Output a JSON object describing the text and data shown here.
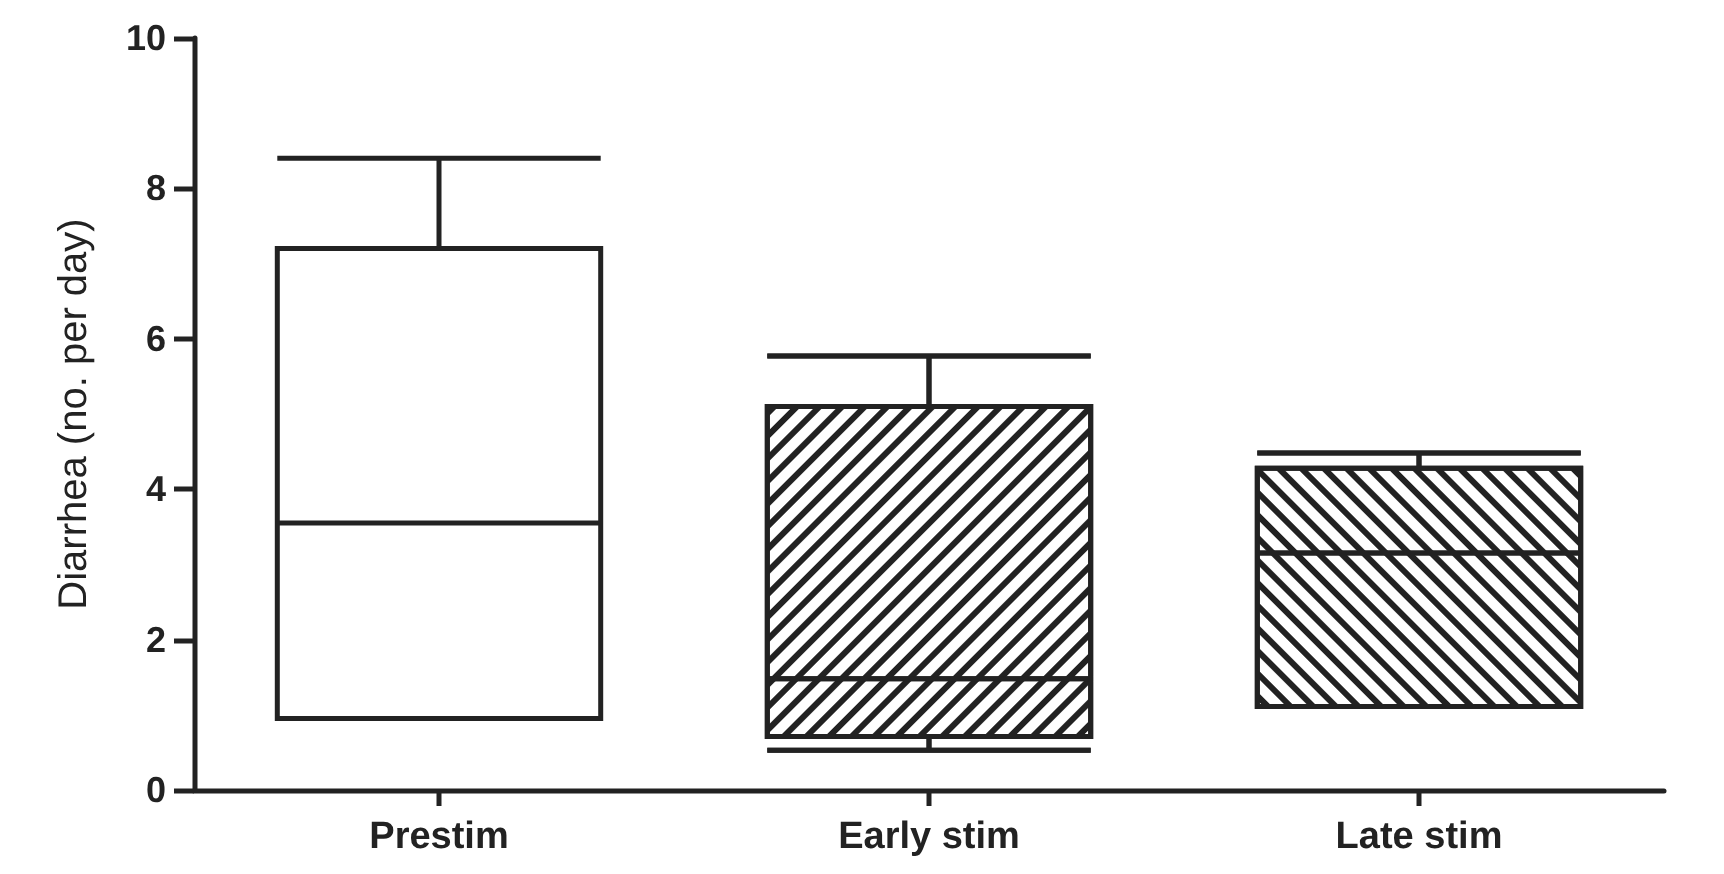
{
  "chart_data": {
    "type": "box",
    "ylabel": "Diarrhea (no. per day)",
    "categories": [
      "Prestim",
      "Early stim",
      "Late stim"
    ],
    "color": "#222222",
    "boxes": [
      {
        "low": 0.95,
        "q1": 0.95,
        "median": 3.55,
        "q3": 7.2,
        "high": 8.4
      },
      {
        "low": 0.53,
        "q1": 0.71,
        "median": 1.48,
        "q3": 5.1,
        "high": 5.77
      },
      {
        "low": 1.11,
        "q1": 1.11,
        "median": 3.15,
        "q3": 4.28,
        "high": 4.48
      }
    ],
    "ylim": [
      0,
      10
    ],
    "yticks": [
      0,
      2,
      4,
      6,
      8,
      10
    ],
    "grid": false
  }
}
